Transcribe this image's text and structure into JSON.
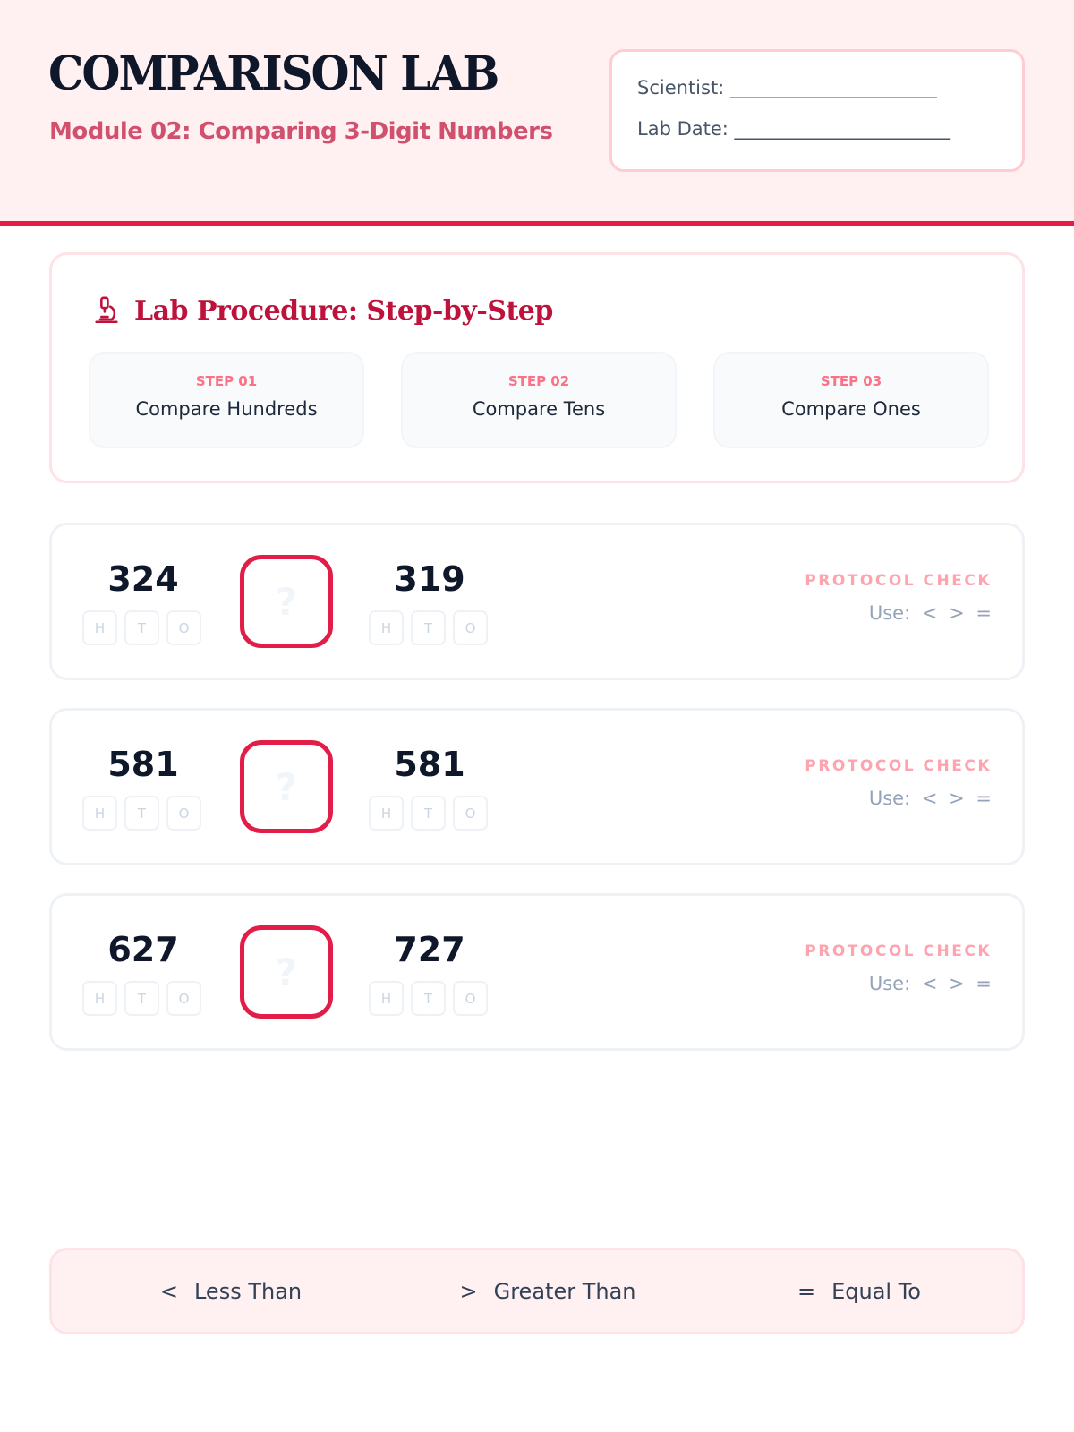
{
  "header": {
    "title": "COMPARISON LAB",
    "subtitle": "Module 02: Comparing 3-Digit Numbers",
    "scientist_label": "Scientist: ______________________",
    "date_label": "Lab Date: _______________________"
  },
  "procedure": {
    "icon": "microscope-icon",
    "title": "Lab Procedure: Step-by-Step",
    "steps": [
      {
        "num": "STEP 01",
        "label": "Compare Hundreds"
      },
      {
        "num": "STEP 02",
        "label": "Compare Tens"
      },
      {
        "num": "STEP 03",
        "label": "Compare Ones"
      }
    ]
  },
  "place_values": [
    "H",
    "T",
    "O"
  ],
  "answer_placeholder": "?",
  "protocol": {
    "label": "PROTOCOL CHECK",
    "use": "Use: < > ="
  },
  "problems": [
    {
      "left": "324",
      "right": "319"
    },
    {
      "left": "581",
      "right": "581"
    },
    {
      "left": "627",
      "right": "727"
    }
  ],
  "legend": [
    {
      "symbol": "<",
      "label": "Less Than"
    },
    {
      "symbol": ">",
      "label": "Greater Than"
    },
    {
      "symbol": "=",
      "label": "Equal To"
    }
  ],
  "colors": {
    "accent": "#e11d48",
    "header_bg": "#fff0f1",
    "heading": "#be123c"
  }
}
